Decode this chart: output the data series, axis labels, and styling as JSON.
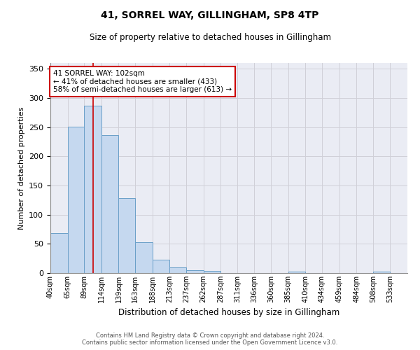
{
  "title": "41, SORREL WAY, GILLINGHAM, SP8 4TP",
  "subtitle": "Size of property relative to detached houses in Gillingham",
  "xlabel": "Distribution of detached houses by size in Gillingham",
  "ylabel": "Number of detached properties",
  "bar_color": "#c5d8ef",
  "bar_edge_color": "#6a9fc8",
  "bins": [
    "40sqm",
    "65sqm",
    "89sqm",
    "114sqm",
    "139sqm",
    "163sqm",
    "188sqm",
    "213sqm",
    "237sqm",
    "262sqm",
    "287sqm",
    "311sqm",
    "336sqm",
    "360sqm",
    "385sqm",
    "410sqm",
    "434sqm",
    "459sqm",
    "484sqm",
    "508sqm",
    "533sqm"
  ],
  "values": [
    68,
    251,
    287,
    237,
    128,
    53,
    23,
    10,
    5,
    4,
    0,
    0,
    0,
    0,
    3,
    0,
    0,
    0,
    0,
    3,
    0
  ],
  "bin_edges_numeric": [
    40,
    65,
    89,
    114,
    139,
    163,
    188,
    213,
    237,
    262,
    287,
    311,
    336,
    360,
    385,
    410,
    434,
    459,
    484,
    508,
    533,
    558
  ],
  "ylim": [
    0,
    360
  ],
  "yticks": [
    0,
    50,
    100,
    150,
    200,
    250,
    300,
    350
  ],
  "property_line_x": 102,
  "annotation_text": "41 SORREL WAY: 102sqm\n← 41% of detached houses are smaller (433)\n58% of semi-detached houses are larger (613) →",
  "annotation_box_color": "#ffffff",
  "annotation_box_edge": "#cc0000",
  "red_line_color": "#cc0000",
  "grid_color": "#d0d0d8",
  "background_color": "#eaecf4",
  "footer_line1": "Contains HM Land Registry data © Crown copyright and database right 2024.",
  "footer_line2": "Contains public sector information licensed under the Open Government Licence v3.0."
}
